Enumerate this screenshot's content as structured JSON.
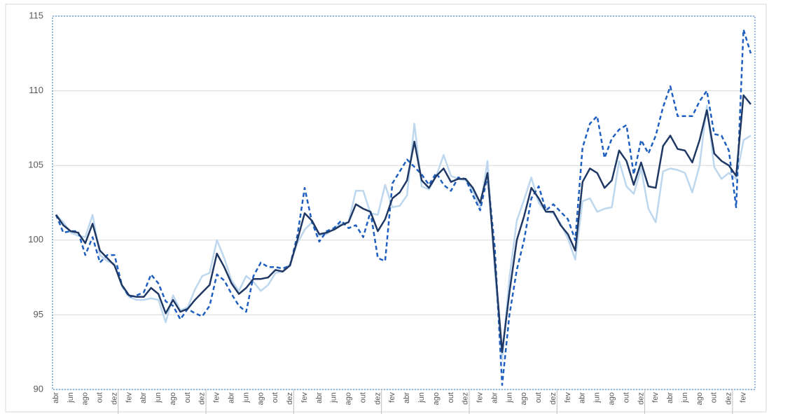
{
  "chart_data": {
    "type": "line",
    "categories": [
      "abr",
      null,
      "jun",
      null,
      "ago",
      null,
      "out",
      null,
      "dez",
      null,
      "fev",
      null,
      "abr",
      null,
      "jun",
      null,
      "ago",
      null,
      "out",
      null,
      "dez",
      null,
      "fev",
      null,
      "abr",
      null,
      "jun",
      null,
      "ago",
      null,
      "out",
      null,
      "dez",
      null,
      "fev",
      null,
      "abr",
      null,
      "jun",
      null,
      "ago",
      null,
      "out",
      null,
      "dez",
      null,
      "fev",
      null,
      "abr",
      null,
      "jun",
      null,
      "ago",
      null,
      "out",
      null,
      "dez",
      null,
      "fev",
      null,
      "abr",
      null,
      "jun",
      null,
      "ago",
      null,
      "out",
      null,
      "dez",
      null,
      "fev",
      null,
      "abr",
      null,
      "jun",
      null,
      "ago",
      null,
      "out",
      null,
      "dez",
      null,
      "fev",
      null,
      "abr",
      null,
      "jun",
      null,
      "ago",
      null,
      "out",
      null,
      "dez",
      null,
      "fev",
      null
    ],
    "series": [
      {
        "color": "#bdd7ee",
        "dash": false,
        "values": [
          101.7,
          101.2,
          100.5,
          100.3,
          100.2,
          101.7,
          99.0,
          98.6,
          98.4,
          96.9,
          96.2,
          96.0,
          96.0,
          96.1,
          96.0,
          94.5,
          96.3,
          95.3,
          95.5,
          96.7,
          97.6,
          97.8,
          100.0,
          98.8,
          97.3,
          96.6,
          97.6,
          97.2,
          96.6,
          97.0,
          97.8,
          97.9,
          98.4,
          99.8,
          100.7,
          101.2,
          100.3,
          100.4,
          100.8,
          101.1,
          101.2,
          103.3,
          103.3,
          101.8,
          101.7,
          103.7,
          102.2,
          102.3,
          103.0,
          107.8,
          103.6,
          103.4,
          104.3,
          105.7,
          104.3,
          104.1,
          104.0,
          103.3,
          102.1,
          105.3,
          98.0,
          92.0,
          97.5,
          101.3,
          102.7,
          104.2,
          102.5,
          101.9,
          101.8,
          101.1,
          100.1,
          98.7,
          102.6,
          102.8,
          101.9,
          102.1,
          102.2,
          105.3,
          103.6,
          103.1,
          104.8,
          102.1,
          101.2,
          104.6,
          104.8,
          104.7,
          104.5,
          103.2,
          105.0,
          109.0,
          104.9,
          104.1,
          104.5,
          104.1,
          106.7,
          107.0
        ]
      },
      {
        "color": "#1f5fbf",
        "dash": true,
        "values": [
          101.7,
          100.5,
          100.6,
          100.6,
          99.0,
          100.2,
          98.5,
          99.0,
          99.0,
          97.0,
          96.2,
          96.3,
          96.5,
          97.7,
          97.1,
          95.9,
          95.6,
          94.7,
          95.4,
          95.1,
          94.9,
          95.6,
          97.7,
          97.3,
          96.4,
          95.6,
          95.2,
          97.6,
          98.5,
          98.2,
          98.2,
          98.1,
          98.3,
          100.3,
          103.5,
          101.2,
          99.9,
          100.6,
          100.8,
          101.3,
          100.8,
          101.0,
          100.2,
          101.9,
          98.8,
          98.6,
          103.8,
          104.6,
          105.4,
          104.9,
          104.4,
          103.7,
          104.5,
          103.7,
          103.3,
          104.2,
          104.1,
          103.0,
          102.0,
          104.3,
          99.5,
          90.3,
          95.0,
          98.0,
          100.0,
          102.8,
          103.6,
          102.0,
          102.4,
          101.9,
          101.4,
          100.0,
          106.2,
          107.8,
          108.3,
          105.5,
          106.8,
          107.4,
          107.7,
          104.4,
          106.7,
          105.8,
          107.0,
          108.9,
          110.3,
          108.3,
          108.3,
          108.3,
          109.3,
          110.0,
          107.1,
          107.0,
          106.0,
          102.2,
          114.1,
          112.5
        ]
      },
      {
        "color": "#1f3864",
        "dash": false,
        "values": [
          101.7,
          101.0,
          100.6,
          100.5,
          99.8,
          101.1,
          99.3,
          98.8,
          98.3,
          97.0,
          96.3,
          96.2,
          96.2,
          96.8,
          96.4,
          95.1,
          96.0,
          95.2,
          95.4,
          96.0,
          96.5,
          97.0,
          99.1,
          98.2,
          97.1,
          96.4,
          96.8,
          97.4,
          97.4,
          97.5,
          98.0,
          97.9,
          98.3,
          100.0,
          101.8,
          101.3,
          100.4,
          100.5,
          100.7,
          101.0,
          101.2,
          102.4,
          102.1,
          101.9,
          100.6,
          101.4,
          102.8,
          103.2,
          104.0,
          106.6,
          104.0,
          103.5,
          104.3,
          104.8,
          103.9,
          104.1,
          104.1,
          103.5,
          102.5,
          104.5,
          98.5,
          92.5,
          96.5,
          100.0,
          101.6,
          103.5,
          102.8,
          101.9,
          101.9,
          101.0,
          100.4,
          99.3,
          103.9,
          104.8,
          104.5,
          103.5,
          104.0,
          106.0,
          105.3,
          103.7,
          105.2,
          103.6,
          103.5,
          106.3,
          107.0,
          106.1,
          106.0,
          105.2,
          106.7,
          108.7,
          105.8,
          105.3,
          105.0,
          104.3,
          109.7,
          109.1
        ]
      }
    ],
    "ylim": [
      90,
      115
    ],
    "yticks": [
      90,
      95,
      100,
      105,
      110,
      115
    ],
    "grid": true
  }
}
